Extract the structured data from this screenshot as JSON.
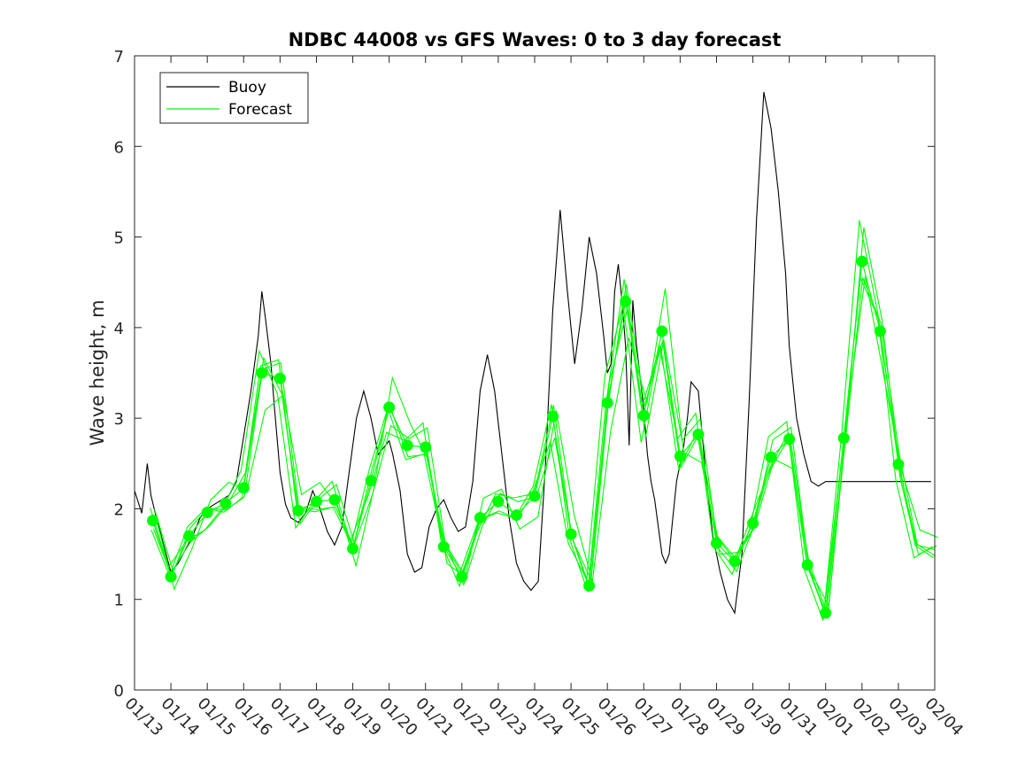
{
  "colors": {
    "buoy": "#000000",
    "forecast": "#00ff00",
    "axis": "#262626",
    "background": "#ffffff"
  },
  "chart_data": {
    "type": "line",
    "title": "NDBC 44008 vs GFS Waves: 0 to 3 day forecast",
    "xlabel": "",
    "ylabel": "Wave height, m",
    "xlim": [
      0,
      22
    ],
    "ylim": [
      0,
      7
    ],
    "yticks": [
      0,
      1,
      2,
      3,
      4,
      5,
      6,
      7
    ],
    "xtick_labels": [
      "01/13",
      "01/14",
      "01/15",
      "01/16",
      "01/17",
      "01/18",
      "01/19",
      "01/20",
      "01/21",
      "01/22",
      "01/23",
      "01/24",
      "01/25",
      "01/26",
      "01/27",
      "01/28",
      "01/29",
      "01/30",
      "01/31",
      "02/01",
      "02/02",
      "02/03",
      "02/04"
    ],
    "legend": {
      "position": "top-left",
      "entries": [
        "Buoy",
        "Forecast"
      ]
    },
    "series": [
      {
        "name": "Buoy",
        "x": [
          0,
          0.2,
          0.35,
          0.45,
          0.6,
          0.8,
          1.0,
          1.2,
          1.4,
          1.6,
          1.8,
          2.0,
          2.2,
          2.4,
          2.6,
          2.8,
          3.0,
          3.2,
          3.4,
          3.5,
          3.6,
          3.75,
          3.85,
          4.0,
          4.15,
          4.3,
          4.5,
          4.7,
          4.9,
          5.1,
          5.3,
          5.5,
          5.7,
          5.9,
          6.1,
          6.3,
          6.5,
          6.7,
          6.9,
          7.0,
          7.1,
          7.3,
          7.5,
          7.7,
          7.9,
          8.1,
          8.3,
          8.5,
          8.7,
          8.9,
          9.1,
          9.3,
          9.5,
          9.7,
          9.9,
          10.1,
          10.3,
          10.5,
          10.7,
          10.9,
          11.1,
          11.3,
          11.5,
          11.7,
          11.9,
          12.1,
          12.3,
          12.5,
          12.7,
          12.9,
          13.0,
          13.1,
          13.2,
          13.3,
          13.4,
          13.5,
          13.6,
          13.7,
          13.8,
          14.0,
          14.1,
          14.2,
          14.3,
          14.4,
          14.5,
          14.6,
          14.7,
          14.8,
          14.9,
          15.0,
          15.1,
          15.2,
          15.3,
          15.5,
          15.7,
          15.9,
          16.1,
          16.3,
          16.5,
          16.7,
          16.9,
          17.1,
          17.3,
          17.5,
          17.7,
          17.9,
          18.0,
          18.1,
          18.2,
          18.4,
          18.6,
          18.8,
          19.0,
          19.2,
          19.4,
          19.6,
          19.8,
          19.95,
          20.1,
          20.2,
          20.3,
          20.4,
          20.5,
          20.6,
          20.7,
          20.9,
          21.1,
          21.3,
          21.5,
          21.7,
          21.9
        ],
        "values": [
          2.2,
          1.95,
          2.5,
          2.15,
          1.9,
          1.6,
          1.3,
          1.4,
          1.55,
          1.7,
          1.9,
          2.0,
          2.05,
          2.1,
          2.15,
          2.3,
          2.8,
          3.3,
          3.9,
          4.4,
          4.1,
          3.6,
          3.1,
          2.4,
          2.05,
          1.9,
          1.85,
          1.95,
          2.2,
          2.0,
          1.75,
          1.6,
          1.8,
          2.4,
          3.0,
          3.3,
          3.0,
          2.6,
          2.7,
          2.75,
          2.6,
          2.2,
          1.5,
          1.3,
          1.35,
          1.8,
          2.0,
          2.1,
          1.9,
          1.75,
          1.8,
          2.3,
          3.3,
          3.7,
          3.3,
          2.6,
          1.9,
          1.4,
          1.2,
          1.1,
          1.2,
          2.5,
          4.2,
          5.3,
          4.4,
          3.6,
          4.2,
          5.0,
          4.6,
          3.9,
          3.5,
          3.6,
          4.4,
          4.7,
          4.3,
          3.8,
          2.7,
          4.3,
          3.8,
          3.1,
          2.6,
          2.3,
          2.1,
          1.8,
          1.5,
          1.4,
          1.5,
          1.9,
          2.3,
          2.5,
          2.7,
          3.0,
          3.4,
          3.3,
          2.4,
          1.7,
          1.3,
          1.0,
          0.85,
          1.5,
          3.2,
          5.2,
          6.6,
          6.2,
          5.5,
          4.6,
          3.8,
          3.4,
          3.0,
          2.6,
          2.3,
          2.25,
          2.3,
          2.3,
          2.3,
          2.3,
          2.3,
          2.3,
          2.3,
          2.3,
          2.3,
          2.3,
          2.3,
          2.3,
          2.3,
          2.3,
          2.3,
          2.3,
          2.3,
          2.3,
          2.3
        ]
      },
      {
        "name": "Forecast",
        "x": [
          0.5,
          1.0,
          1.5,
          2.0,
          2.5,
          3.0,
          3.5,
          4.0,
          4.5,
          5.0,
          5.5,
          6.0,
          6.5,
          7.0,
          7.5,
          8.0,
          8.5,
          9.0,
          9.5,
          10.0,
          10.5,
          11.0,
          11.5,
          12.0,
          12.5,
          13.0,
          13.5,
          14.0,
          14.5,
          15.0,
          15.5,
          16.0,
          16.5,
          17.0,
          17.5,
          18.0,
          18.5,
          19.0,
          19.5,
          20.0,
          20.5,
          21.0,
          21.5,
          22.0
        ],
        "values": [
          1.87,
          1.25,
          1.7,
          1.96,
          2.06,
          2.23,
          3.5,
          3.44,
          1.98,
          2.08,
          2.1,
          1.56,
          2.31,
          3.12,
          2.7,
          2.68,
          1.58,
          1.25,
          1.9,
          2.08,
          1.93,
          2.14,
          3.02,
          1.72,
          1.15,
          3.17,
          4.29,
          3.03,
          3.96,
          2.58,
          2.82,
          1.62,
          1.42,
          1.84,
          2.57,
          2.77,
          1.38,
          0.85,
          2.78,
          4.73,
          3.96,
          2.49,
          1.6,
          1.55
        ]
      }
    ],
    "forecast_markers": {
      "x": [
        0.5,
        1.0,
        1.5,
        2.0,
        2.5,
        3.0,
        3.5,
        4.0,
        4.5,
        5.0,
        5.5,
        6.0,
        6.5,
        7.0,
        7.5,
        8.0,
        8.5,
        9.0,
        9.5,
        10.0,
        10.5,
        11.0,
        11.5,
        12.0,
        12.5,
        13.0,
        13.5,
        14.0,
        14.5,
        15.0,
        15.5,
        16.0,
        16.5,
        17.0,
        17.5,
        18.0,
        18.5,
        19.0,
        19.5,
        20.0,
        20.5,
        21.0
      ],
      "values": [
        1.87,
        1.25,
        1.7,
        1.96,
        2.06,
        2.23,
        3.5,
        3.44,
        1.98,
        2.08,
        2.1,
        1.56,
        2.31,
        3.12,
        2.7,
        2.68,
        1.58,
        1.25,
        1.9,
        2.08,
        1.93,
        2.14,
        3.02,
        1.72,
        1.15,
        3.17,
        4.29,
        3.03,
        3.96,
        2.58,
        2.82,
        1.62,
        1.42,
        1.84,
        2.57,
        2.77,
        1.38,
        0.85,
        2.78,
        4.73,
        3.96,
        2.49
      ]
    }
  }
}
